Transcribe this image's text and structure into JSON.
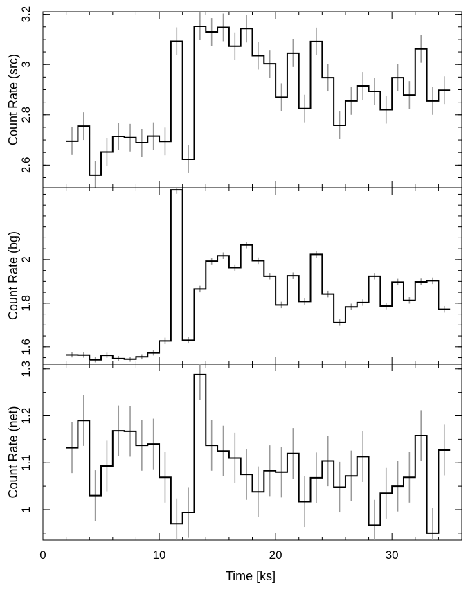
{
  "chart_data": [
    {
      "type": "line",
      "ylabel": "Count Rate (src)",
      "xlim": [
        0,
        36
      ],
      "ylim": [
        2.51,
        3.21
      ],
      "yticks": [
        2.6,
        2.8,
        3,
        3.2
      ],
      "ytick_labels": [
        "2.6",
        "2.8",
        "3",
        "3.2"
      ],
      "bin_width": 1,
      "x": [
        2.5,
        3.5,
        4.5,
        5.5,
        6.5,
        7.5,
        8.5,
        9.5,
        10.5,
        11.5,
        12.5,
        13.5,
        14.5,
        15.5,
        16.5,
        17.5,
        18.5,
        19.5,
        20.5,
        21.5,
        22.5,
        23.5,
        24.5,
        25.5,
        26.5,
        27.5,
        28.5,
        29.5,
        30.5,
        31.5,
        32.5,
        33.5,
        34.5
      ],
      "values": [
        2.695,
        2.755,
        2.56,
        2.652,
        2.714,
        2.709,
        2.689,
        2.715,
        2.694,
        3.093,
        2.623,
        3.152,
        3.13,
        3.148,
        3.073,
        3.143,
        3.035,
        3.003,
        2.87,
        3.045,
        2.825,
        3.092,
        2.948,
        2.758,
        2.855,
        2.915,
        2.893,
        2.82,
        2.948,
        2.879,
        3.062,
        2.855,
        2.898
      ],
      "errors": [
        0.055,
        0.055,
        0.055,
        0.055,
        0.055,
        0.055,
        0.055,
        0.055,
        0.055,
        0.055,
        0.055,
        0.055,
        0.055,
        0.055,
        0.055,
        0.055,
        0.055,
        0.055,
        0.055,
        0.055,
        0.055,
        0.055,
        0.055,
        0.055,
        0.055,
        0.055,
        0.055,
        0.055,
        0.055,
        0.055,
        0.055,
        0.055,
        0.055
      ]
    },
    {
      "type": "line",
      "ylabel": "Count Rate (bg)",
      "xlim": [
        0,
        36
      ],
      "ylim": [
        1.52,
        2.33
      ],
      "yticks": [
        1.6,
        1.8,
        2
      ],
      "ytick_labels": [
        "1.6",
        "1.8",
        "2"
      ],
      "bin_width": 1,
      "x": [
        2.5,
        3.5,
        4.5,
        5.5,
        6.5,
        7.5,
        8.5,
        9.5,
        10.5,
        11.5,
        12.5,
        13.5,
        14.5,
        15.5,
        16.5,
        17.5,
        18.5,
        19.5,
        20.5,
        21.5,
        22.5,
        23.5,
        24.5,
        25.5,
        26.5,
        27.5,
        28.5,
        29.5,
        30.5,
        31.5,
        32.5,
        33.5,
        34.5
      ],
      "values": [
        1.563,
        1.562,
        1.54,
        1.561,
        1.546,
        1.543,
        1.554,
        1.572,
        1.627,
        2.32,
        1.63,
        1.865,
        1.993,
        2.018,
        1.963,
        2.067,
        1.995,
        1.924,
        1.792,
        1.926,
        1.808,
        2.024,
        1.842,
        1.711,
        1.783,
        1.803,
        1.924,
        1.787,
        1.897,
        1.813,
        1.898,
        1.903,
        1.772
      ],
      "errors": [
        0.012,
        0.012,
        0.012,
        0.012,
        0.012,
        0.012,
        0.012,
        0.012,
        0.015,
        0.018,
        0.015,
        0.015,
        0.015,
        0.015,
        0.015,
        0.015,
        0.015,
        0.015,
        0.015,
        0.015,
        0.015,
        0.015,
        0.015,
        0.015,
        0.015,
        0.015,
        0.015,
        0.015,
        0.015,
        0.015,
        0.015,
        0.015,
        0.015
      ]
    },
    {
      "type": "line",
      "ylabel": "Count Rate (net)",
      "xlabel": "Time [ks]",
      "xlim": [
        0,
        36
      ],
      "xticks": [
        0,
        10,
        20,
        30
      ],
      "xtick_labels": [
        "0",
        "10",
        "20",
        "30"
      ],
      "ylim": [
        0.935,
        1.31
      ],
      "yticks": [
        1,
        1.1,
        1.2,
        1.3
      ],
      "ytick_labels": [
        "1",
        "1.1",
        "1.2",
        "1.3"
      ],
      "bin_width": 1,
      "x": [
        2.5,
        3.5,
        4.5,
        5.5,
        6.5,
        7.5,
        8.5,
        9.5,
        10.5,
        11.5,
        12.5,
        13.5,
        14.5,
        15.5,
        16.5,
        17.5,
        18.5,
        19.5,
        20.5,
        21.5,
        22.5,
        23.5,
        24.5,
        25.5,
        26.5,
        27.5,
        28.5,
        29.5,
        30.5,
        31.5,
        32.5,
        33.5,
        34.5
      ],
      "values": [
        1.132,
        1.19,
        1.03,
        1.093,
        1.168,
        1.167,
        1.137,
        1.14,
        1.069,
        0.97,
        0.994,
        1.288,
        1.137,
        1.125,
        1.11,
        1.075,
        1.038,
        1.083,
        1.08,
        1.12,
        1.017,
        1.068,
        1.104,
        1.048,
        1.072,
        1.113,
        0.967,
        1.035,
        1.05,
        1.069,
        1.158,
        0.95,
        1.127
      ],
      "errors": [
        0.054,
        0.054,
        0.054,
        0.054,
        0.054,
        0.054,
        0.054,
        0.054,
        0.054,
        0.054,
        0.054,
        0.054,
        0.054,
        0.054,
        0.054,
        0.054,
        0.054,
        0.054,
        0.054,
        0.054,
        0.054,
        0.054,
        0.054,
        0.054,
        0.054,
        0.054,
        0.054,
        0.054,
        0.054,
        0.054,
        0.054,
        0.054,
        0.054
      ]
    }
  ],
  "colors": {
    "step_line": "#000000",
    "error_bar": "#999999",
    "axis": "#000000",
    "background": "#ffffff"
  }
}
